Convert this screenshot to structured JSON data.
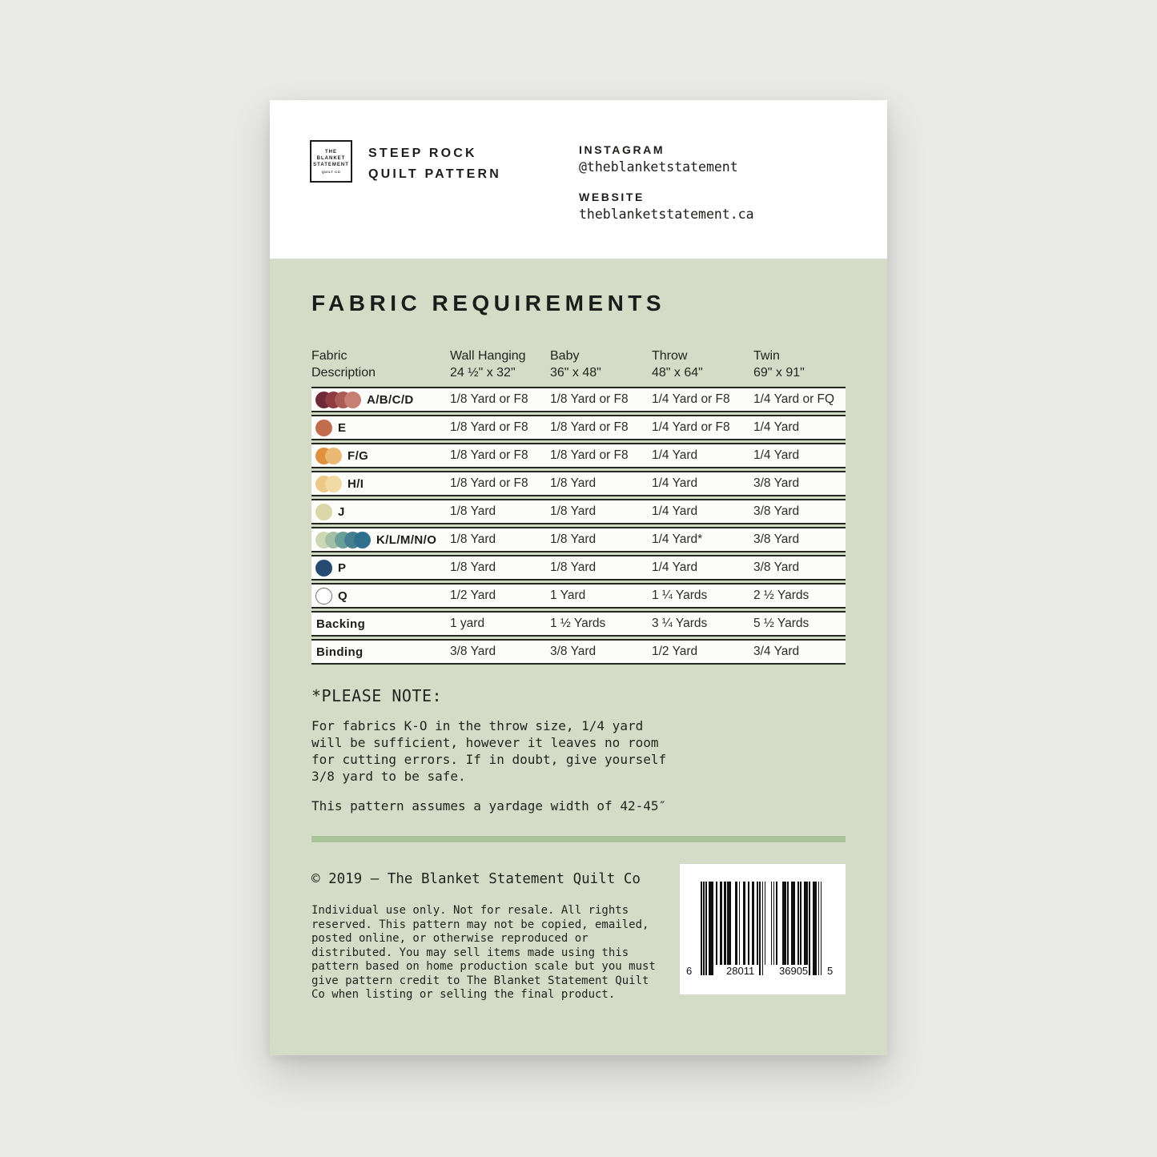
{
  "header": {
    "logo": {
      "line1": "THE",
      "line2": "BLANKET",
      "line3": "STATEMENT",
      "sub": "QUILT CO"
    },
    "title_line1": "STEEP ROCK",
    "title_line2": "QUILT PATTERN",
    "instagram_label": "INSTAGRAM",
    "instagram_handle": "@theblanketstatement",
    "website_label": "WEBSITE",
    "website_url": "theblanketstatement.ca"
  },
  "section_title": "FABRIC REQUIREMENTS",
  "table": {
    "columns": [
      {
        "name": "Fabric",
        "size": "Description"
      },
      {
        "name": "Wall Hanging",
        "size": "24 ½\" x 32\""
      },
      {
        "name": "Baby",
        "size": "36\" x 48\""
      },
      {
        "name": "Throw",
        "size": "48\" x 64\""
      },
      {
        "name": "Twin",
        "size": "69\" x 91\""
      }
    ],
    "rows": [
      {
        "label": "A/B/C/D",
        "swatches": [
          "#6d2937",
          "#8f3c40",
          "#ab5a55",
          "#c67f73"
        ],
        "values": [
          "1/8 Yard or F8",
          "1/8 Yard or F8",
          "1/4 Yard or F8",
          "1/4 Yard or FQ"
        ]
      },
      {
        "label": "E",
        "swatches": [
          "#c26c4e"
        ],
        "values": [
          "1/8 Yard or F8",
          "1/8 Yard or F8",
          "1/4 Yard or F8",
          "1/4 Yard"
        ]
      },
      {
        "label": "F/G",
        "swatches": [
          "#e0913f",
          "#eaba75"
        ],
        "values": [
          "1/8 Yard or F8",
          "1/8 Yard or F8",
          "1/4 Yard",
          "1/4 Yard"
        ]
      },
      {
        "label": "H/I",
        "swatches": [
          "#ecc987",
          "#f2daa4"
        ],
        "values": [
          "1/8 Yard or F8",
          "1/8 Yard",
          "1/4 Yard",
          "3/8 Yard"
        ]
      },
      {
        "label": "J",
        "swatches": [
          "#dcd7a9"
        ],
        "values": [
          "1/8 Yard",
          "1/8 Yard",
          "1/4 Yard",
          "3/8 Yard"
        ]
      },
      {
        "label": "K/L/M/N/O",
        "swatches": [
          "#ccd7b4",
          "#a3bfa6",
          "#6a9f98",
          "#467e91",
          "#2d6f8c"
        ],
        "values": [
          "1/8 Yard",
          "1/8 Yard",
          "1/4 Yard*",
          "3/8 Yard"
        ]
      },
      {
        "label": "P",
        "swatches": [
          "#274a72"
        ],
        "values": [
          "1/8 Yard",
          "1/8 Yard",
          "1/4 Yard",
          "3/8 Yard"
        ]
      },
      {
        "label": "Q",
        "swatches": [
          "#ffffff"
        ],
        "values": [
          "1/2 Yard",
          "1 Yard",
          "1 ¼ Yards",
          "2 ½ Yards"
        ]
      },
      {
        "label": "Backing",
        "swatches": [],
        "values": [
          "1 yard",
          "1 ½ Yards",
          "3 ¼ Yards",
          "5 ½ Yards"
        ]
      },
      {
        "label": "Binding",
        "swatches": [],
        "values": [
          "3/8 Yard",
          "3/8 Yard",
          "1/2 Yard",
          "3/4 Yard"
        ]
      }
    ]
  },
  "note": {
    "title": "*PLEASE NOTE:",
    "body": "For fabrics K-O in the throw size, 1/4 yard\nwill be sufficient, however it leaves no room\nfor cutting errors. If in doubt, give yourself\n3/8 yard to be safe.",
    "footnote": "This pattern assumes a yardage width of 42-45″"
  },
  "footer": {
    "copyright": "© 2019 – The Blanket Statement Quilt Co",
    "legal": "Individual use only. Not for resale. All rights\nreserved. This pattern may not be copied, emailed,\nposted online, or otherwise reproduced or\ndistributed. You may sell items made using this\npattern based on home production scale but you must\ngive pattern credit to The Blanket Statement Quilt\nCo when listing or selling the final product.",
    "barcode": {
      "digits": "628011369055",
      "display": [
        "6",
        "28011",
        "36905",
        "5"
      ]
    }
  },
  "colors": {
    "page_background": "#e9e9e7",
    "card_green": "#d4dcc8",
    "divider_green": "#aac299",
    "ink": "#1d1d1b"
  }
}
